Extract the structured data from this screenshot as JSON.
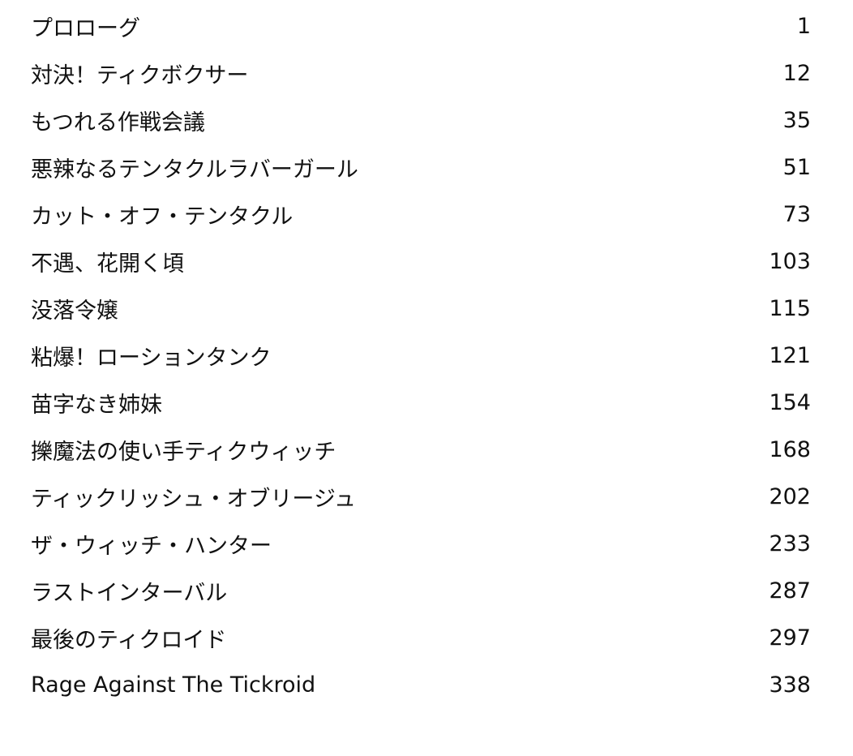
{
  "toc": {
    "entries": [
      {
        "title": "プロローグ",
        "page": "1"
      },
      {
        "title": "対決！ティクボクサー",
        "page": "12"
      },
      {
        "title": "もつれる作戦会議",
        "page": "35"
      },
      {
        "title": "悪辣なるテンタクルラバーガール",
        "page": "51"
      },
      {
        "title": "カット・オフ・テンタクル",
        "page": "73"
      },
      {
        "title": "不遇、花開く頃",
        "page": "103"
      },
      {
        "title": "没落令嬢",
        "page": "115"
      },
      {
        "title": "粘爆！ローションタンク",
        "page": "121"
      },
      {
        "title": "苗字なき姉妹",
        "page": "154"
      },
      {
        "title": "擽魔法の使い手ティクウィッチ",
        "page": "168"
      },
      {
        "title": "ティックリッシュ・オブリージュ",
        "page": "202"
      },
      {
        "title": "ザ・ウィッチ・ハンター",
        "page": "233"
      },
      {
        "title": "ラストインターバル",
        "page": "287"
      },
      {
        "title": "最後のティクロイド",
        "page": "297"
      },
      {
        "title": "Rage Against The Tickroid",
        "page": "338"
      }
    ]
  }
}
